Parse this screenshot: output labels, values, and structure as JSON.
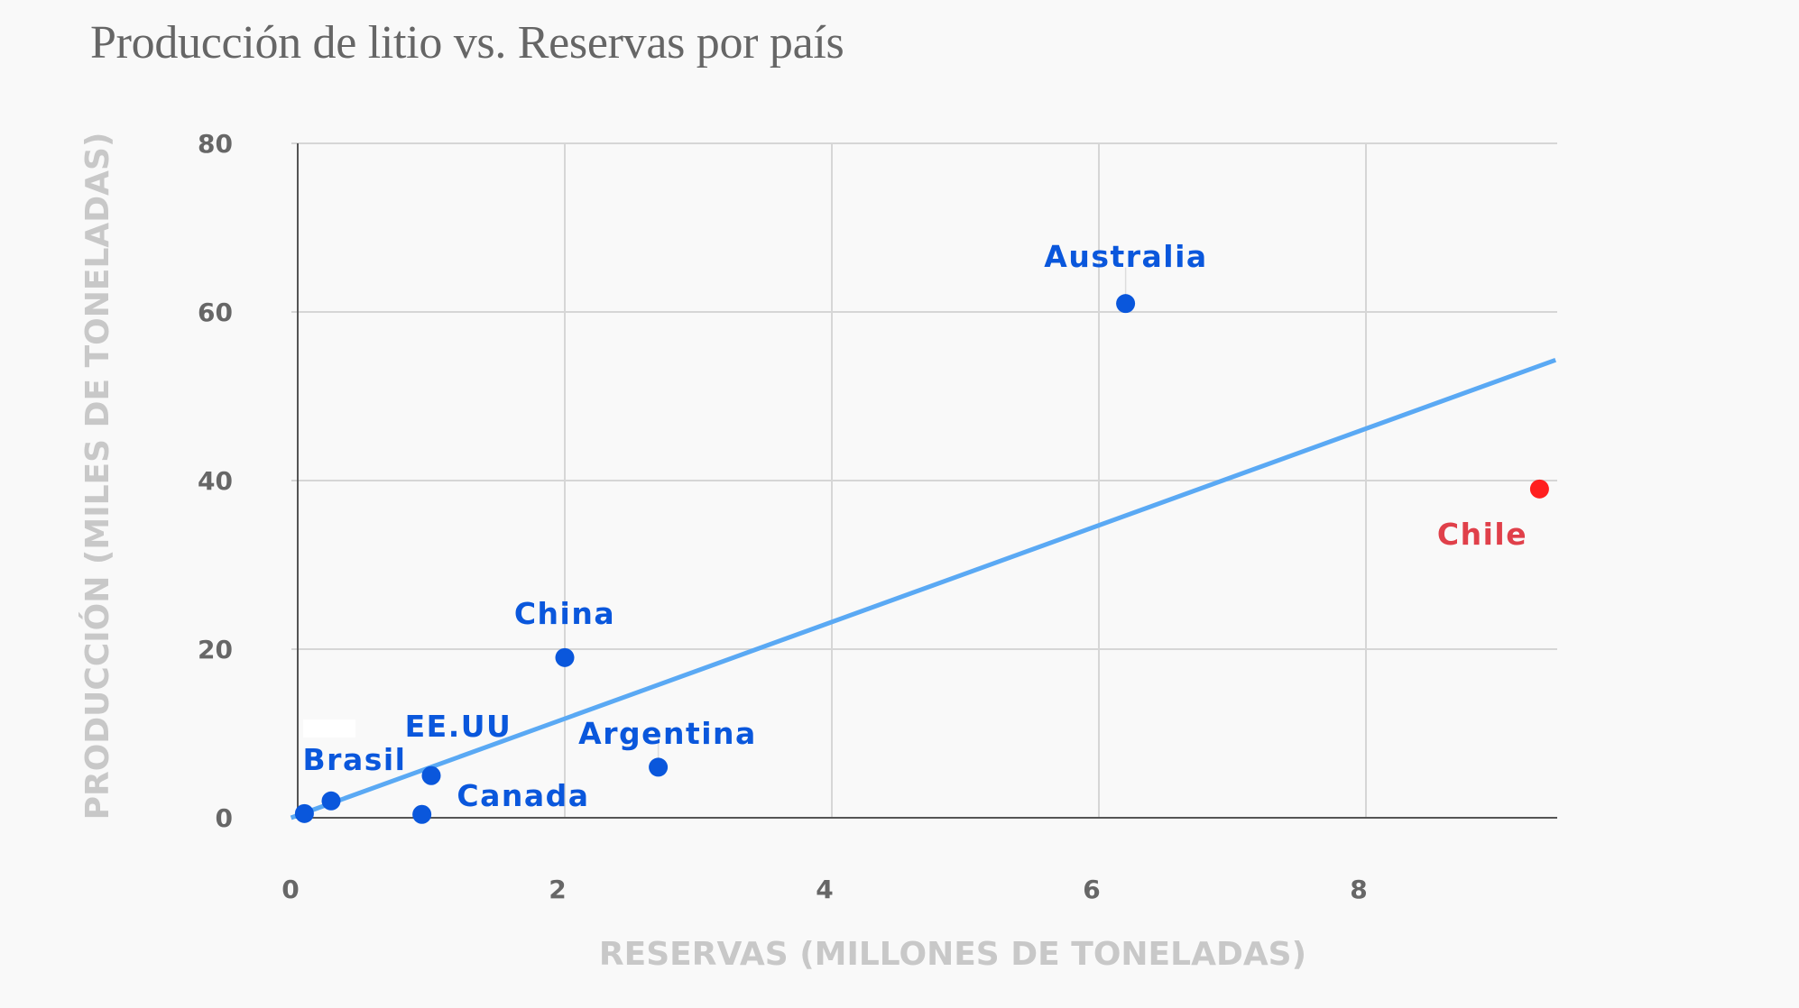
{
  "chart_data": {
    "type": "scatter",
    "title": "Producción de litio vs. Reservas por país",
    "xlabel": "RESERVAS (MILLONES DE TONELADAS)",
    "ylabel": "PRODUCCIÓN (MILES DE TONELADAS)",
    "xlim": [
      0,
      9.4
    ],
    "ylim": [
      0,
      80
    ],
    "x_ticks": [
      0,
      2,
      4,
      6,
      8
    ],
    "y_ticks": [
      0,
      20,
      40,
      60,
      80
    ],
    "grid": true,
    "points": [
      {
        "label": "",
        "x": 0.05,
        "y": 0.5,
        "color": "#0a57dc"
      },
      {
        "label": "Brasil",
        "x": 0.25,
        "y": 2,
        "color": "#0a57dc"
      },
      {
        "label": "Canada",
        "x": 0.93,
        "y": 0.4,
        "color": "#0a57dc"
      },
      {
        "label": "EE.UU",
        "x": 1.0,
        "y": 5,
        "color": "#0a57dc"
      },
      {
        "label": "China",
        "x": 2.0,
        "y": 19,
        "color": "#0a57dc"
      },
      {
        "label": "Argentina",
        "x": 2.7,
        "y": 6,
        "color": "#0a57dc"
      },
      {
        "label": "Australia",
        "x": 6.2,
        "y": 61,
        "color": "#0a57dc"
      },
      {
        "label": "Chile",
        "x": 9.3,
        "y": 39,
        "color": "#ff1f1f",
        "label_color": "#e0404a"
      }
    ],
    "trendline": {
      "type": "linear",
      "x": [
        -0.05,
        9.42
      ],
      "y": [
        0,
        54.3
      ],
      "color": "#5aa9f4"
    }
  },
  "colors": {
    "background": "#f9f9f9",
    "gridline": "#d6d6d6",
    "axis": "#555555",
    "tick_text": "#676767",
    "axis_title": "#c8c8c8",
    "title": "#666666",
    "point_blue": "#0a57dc",
    "point_red": "#ff1f1f",
    "trendline": "#5aa9f4"
  }
}
